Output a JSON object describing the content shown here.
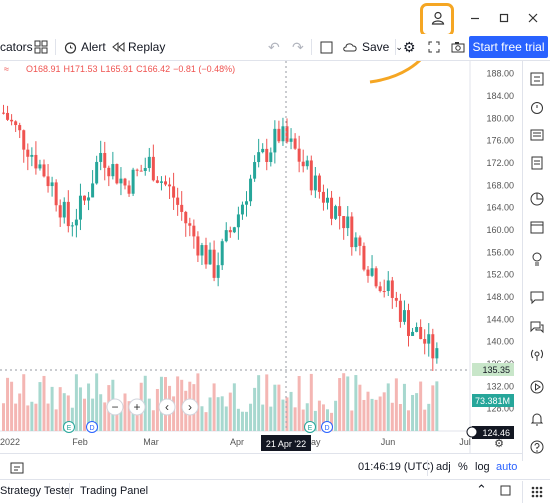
{
  "window": {
    "account_icon": "user-icon",
    "minimize_icon": "minimize-icon",
    "maximize_icon": "maximize-icon",
    "close_icon": "close-icon"
  },
  "toolbar": {
    "indicators_label": "cators",
    "alert_label": "Alert",
    "replay_label": "Replay",
    "save_label": "Save",
    "start_trial_label": "Start free trial"
  },
  "legend": {
    "open": "O168.91",
    "high": "H171.53",
    "low": "L165.91",
    "close": "C166.42",
    "change": "−0.81 (−0.48%)"
  },
  "chart_data": {
    "type": "candlestick",
    "y_ticks": [
      "188.00",
      "184.00",
      "180.00",
      "176.00",
      "172.00",
      "168.00",
      "164.00",
      "160.00",
      "156.00",
      "152.00",
      "148.00",
      "144.00",
      "140.00",
      "136.00",
      "132.00",
      "128.00",
      "124.00"
    ],
    "ylim": [
      124,
      189
    ],
    "x_ticks": [
      "2022",
      "Feb",
      "Mar",
      "Apr",
      "May",
      "Jun",
      "Jul"
    ],
    "crosshair_date": "21 Apr '22",
    "price_labels": [
      {
        "value": "135.35",
        "color": "#c8e6c9"
      },
      {
        "value": "73.381M",
        "color": "#26a69a"
      },
      {
        "value": "124.46",
        "color": "#131722"
      }
    ],
    "colors": {
      "up": "#26a69a",
      "down": "#ef5350",
      "vol_up": "#a7d8cf",
      "vol_down": "#f4b6b3"
    }
  },
  "bottom": {
    "time": "01:46:19 (UTC)",
    "adj": "adj",
    "percent": "%",
    "log": "log",
    "auto": "auto"
  },
  "panels": {
    "strategy_tester": "Strategy Tester",
    "trading_panel": "Trading Panel"
  }
}
